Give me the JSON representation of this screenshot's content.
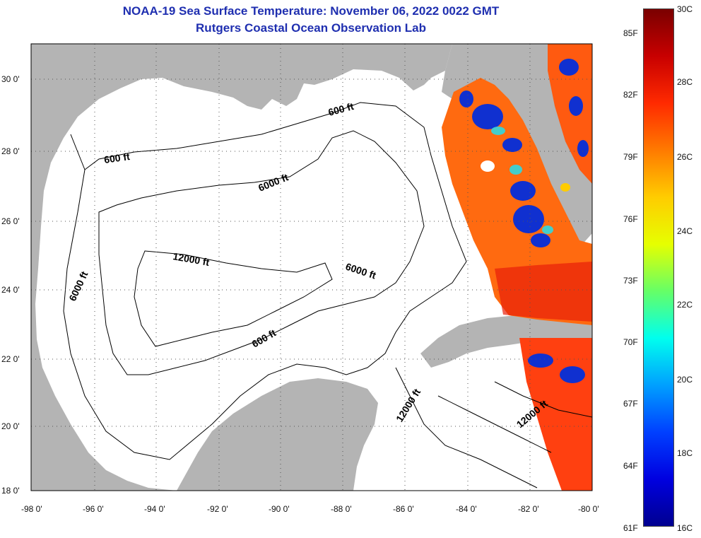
{
  "title": {
    "line1": "NOAA-19 Sea Surface Temperature:  November 06, 2022 0022 GMT",
    "line2": "Rutgers Coastal Ocean Observation Lab"
  },
  "map": {
    "lat_labels": [
      "30 0'",
      "28 0'",
      "26 0'",
      "24 0'",
      "22 0'",
      "20 0'",
      "18 0'"
    ],
    "lon_labels": [
      "-98 0'",
      "-96 0'",
      "-94 0'",
      "-92 0'",
      "-90 0'",
      "-88 0'",
      "-86 0'",
      "-84 0'",
      "-82 0'",
      "-80 0'"
    ],
    "contour_labels": {
      "c600_nw": "600 ft",
      "c600_n": "600 ft",
      "c600_yuc": "600 ft",
      "c6000_n": "6000 ft",
      "c6000_w": "6000 ft",
      "c6000_e": "6000 ft",
      "c12000_c": "12000 ft",
      "c12000_se": "12000 ft",
      "c12000_cuba": "12000 ft"
    },
    "colors": {
      "land": "#b4b4b4",
      "ocean": "#ffffff",
      "grid": "#555555"
    }
  },
  "colorbar": {
    "fahrenheit_labels": [
      "85F",
      "82F",
      "79F",
      "76F",
      "73F",
      "70F",
      "67F",
      "64F",
      "61F"
    ],
    "celsius_labels": [
      "30C",
      "28C",
      "26C",
      "24C",
      "22C",
      "20C",
      "18C",
      "16C"
    ],
    "gradient": [
      "#7a0000",
      "#c80000",
      "#ff2a00",
      "#ff7a00",
      "#ffcc00",
      "#e6ff00",
      "#66ff66",
      "#00ffee",
      "#00a0ff",
      "#0040ff",
      "#0000e0",
      "#000090"
    ]
  }
}
